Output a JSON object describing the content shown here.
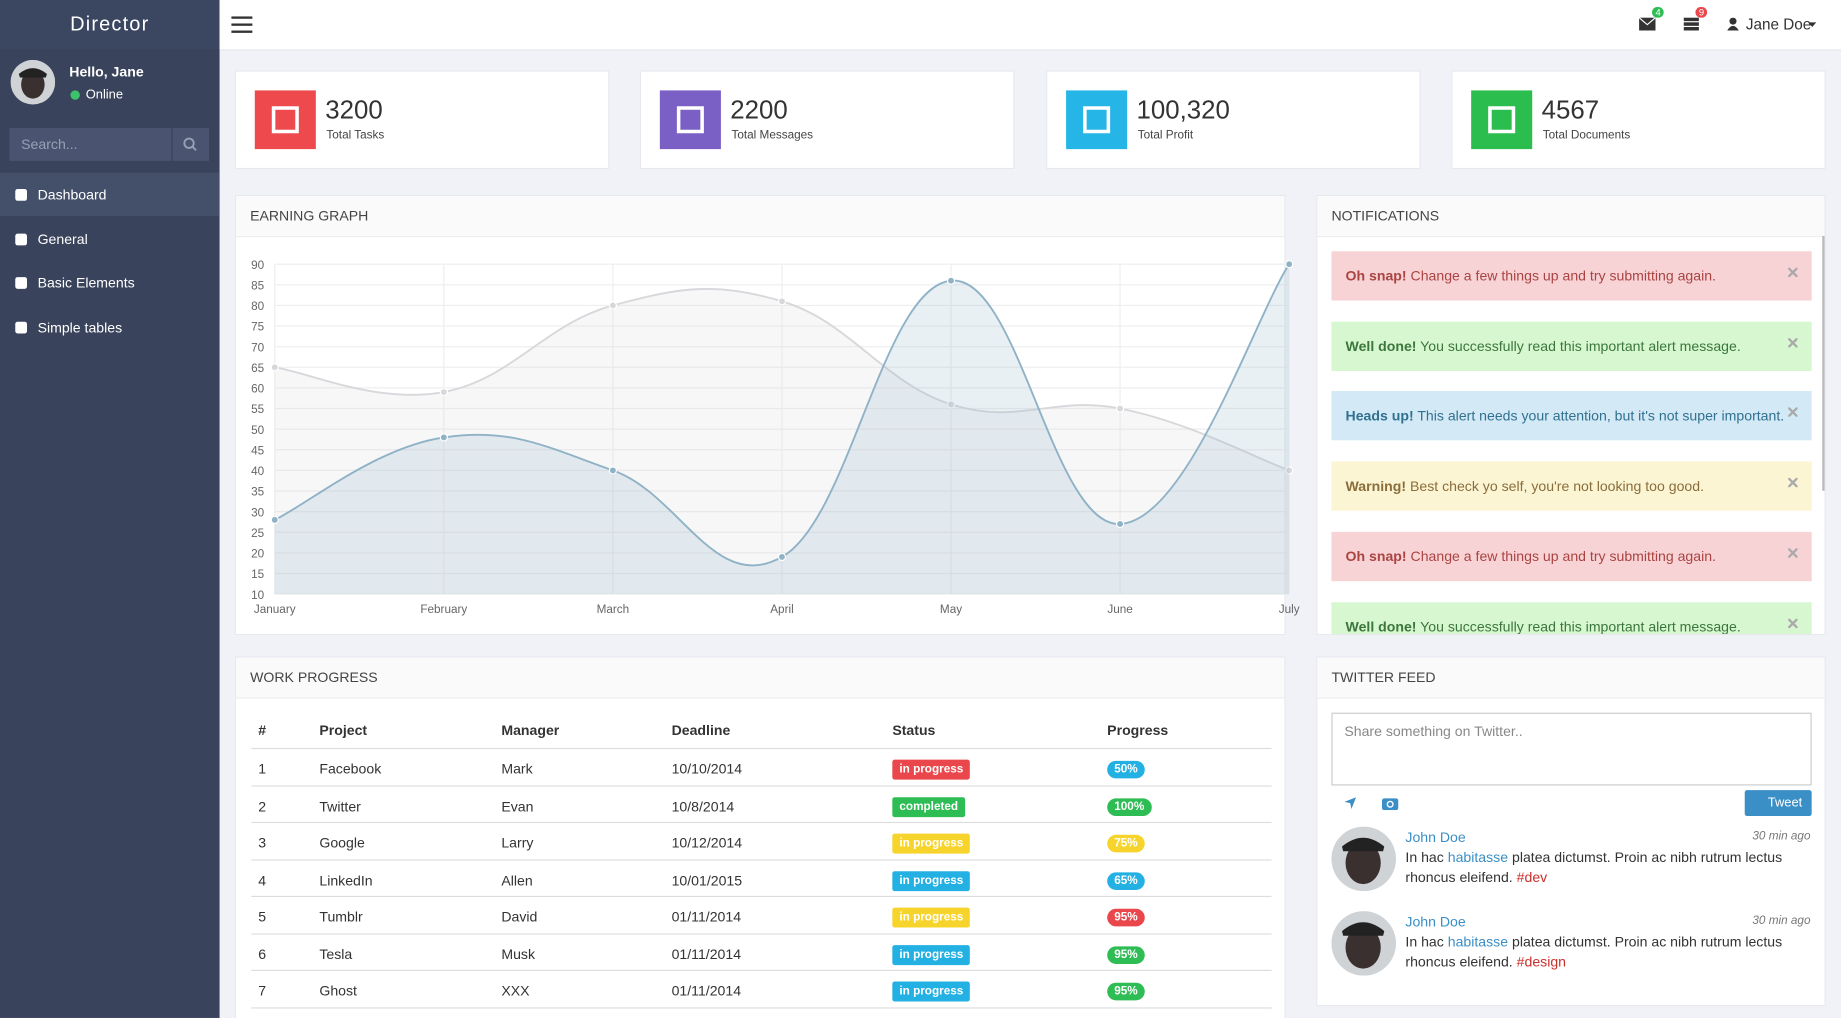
{
  "sidebar": {
    "brand": "Director",
    "greeting": "Hello, Jane",
    "status": "Online",
    "search_placeholder": "Search...",
    "menu": [
      "Dashboard",
      "General",
      "Basic Elements",
      "Simple tables"
    ]
  },
  "header": {
    "mail_count": "4",
    "task_count": "9",
    "user": "Jane Doe"
  },
  "stats": [
    {
      "value": "3200",
      "label": "Total Tasks",
      "color": "#ee4a4d"
    },
    {
      "value": "2200",
      "label": "Total Messages",
      "color": "#7a5fc4"
    },
    {
      "value": "100,320",
      "label": "Total Profit",
      "color": "#25b5e6"
    },
    {
      "value": "4567",
      "label": "Total Documents",
      "color": "#2bbd4d"
    }
  ],
  "chart_data": {
    "type": "line",
    "title": "EARNING GRAPH",
    "categories": [
      "January",
      "February",
      "March",
      "April",
      "May",
      "June",
      "July"
    ],
    "series": [
      {
        "color": "#d8d8dc",
        "values": [
          65,
          59,
          80,
          81,
          56,
          55,
          40
        ]
      },
      {
        "color": "#8fb2c6",
        "values": [
          28,
          48,
          40,
          19,
          86,
          27,
          90
        ]
      }
    ],
    "ylim": [
      10,
      90
    ],
    "yticks": [
      10,
      15,
      20,
      25,
      30,
      35,
      40,
      45,
      50,
      55,
      60,
      65,
      70,
      75,
      80,
      85,
      90
    ],
    "grid": true
  },
  "notifications": {
    "title": "NOTIFICATIONS",
    "alerts": [
      {
        "strong": "Oh snap!",
        "text": "Change a few things up and try submitting again.",
        "bg": "#f8d3d6",
        "fg": "#a94442"
      },
      {
        "strong": "Well done!",
        "text": "You successfully read this important alert message.",
        "bg": "#d6f7cf",
        "fg": "#3c763d"
      },
      {
        "strong": "Heads up!",
        "text": "This alert needs your attention, but it's not super important.",
        "bg": "#d3eaf6",
        "fg": "#31708f"
      },
      {
        "strong": "Warning!",
        "text": "Best check yo self, you're not looking too good.",
        "bg": "#fcf5d4",
        "fg": "#8a6d3b"
      },
      {
        "strong": "Oh snap!",
        "text": "Change a few things up and try submitting again.",
        "bg": "#f8d3d6",
        "fg": "#a94442"
      },
      {
        "strong": "Well done!",
        "text": "You successfully read this important alert message.",
        "bg": "#d6f7cf",
        "fg": "#3c763d"
      }
    ]
  },
  "work_progress": {
    "title": "WORK PROGRESS",
    "columns": [
      "#",
      "Project",
      "Manager",
      "Deadline",
      "Status",
      "Progress"
    ],
    "rows": [
      [
        "1",
        "Facebook",
        "Mark",
        "10/10/2014",
        "in progress",
        "50%"
      ],
      [
        "2",
        "Twitter",
        "Evan",
        "10/8/2014",
        "completed",
        "100%"
      ],
      [
        "3",
        "Google",
        "Larry",
        "10/12/2014",
        "in progress",
        "75%"
      ],
      [
        "4",
        "LinkedIn",
        "Allen",
        "10/01/2015",
        "in progress",
        "65%"
      ],
      [
        "5",
        "Tumblr",
        "David",
        "01/11/2014",
        "in progress",
        "95%"
      ],
      [
        "6",
        "Tesla",
        "Musk",
        "01/11/2014",
        "in progress",
        "95%"
      ],
      [
        "7",
        "Ghost",
        "XXX",
        "01/11/2014",
        "in progress",
        "95%"
      ]
    ],
    "status_colors": [
      "#e9474b",
      "#2ebd54",
      "#f7d42c",
      "#23b0e2",
      "#f7d42c",
      "#23b0e2",
      "#23b0e2"
    ],
    "progress_colors": [
      "#23b0e2",
      "#2ebd54",
      "#f7d42c",
      "#23b0e2",
      "#e9474b",
      "#2ebd54",
      "#2ebd54"
    ]
  },
  "twitter": {
    "title": "TWITTER FEED",
    "placeholder": "Share something on Twitter..",
    "button": "Tweet",
    "posts": [
      {
        "name": "John Doe",
        "time": "30 min ago",
        "pre": "In hac",
        "link": "habitasse",
        "rest": "platea dictumst. Proin ac nibh rutrum lectus rhoncus eleifend.",
        "tag": "#dev"
      },
      {
        "name": "John Doe",
        "time": "30 min ago",
        "pre": "In hac",
        "link": "habitasse",
        "rest": "platea dictumst. Proin ac nibh rutrum lectus rhoncus eleifend.",
        "tag": "#design"
      }
    ]
  }
}
